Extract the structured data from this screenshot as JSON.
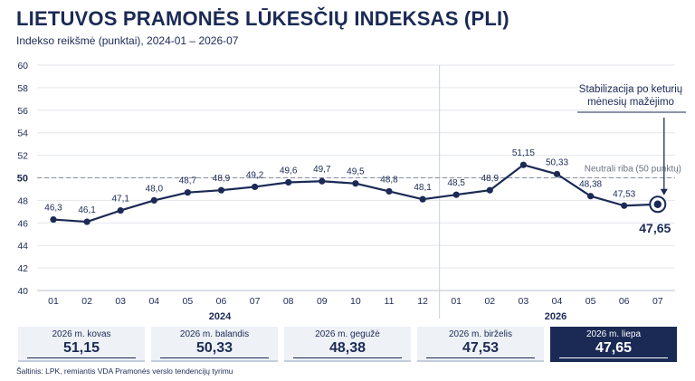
{
  "header": {
    "title": "LIETUVOS PRAMONĖS LŪKESČIŲ INDEKSAS (PLI)",
    "subtitle": "Indekso reikšmė (punktai), 2024-01 – 2026-07"
  },
  "chart_data": {
    "type": "line",
    "ylim": [
      40,
      60
    ],
    "yticks": [
      40,
      42,
      44,
      46,
      48,
      50,
      52,
      54,
      56,
      58,
      60
    ],
    "x_labels": [
      "01",
      "02",
      "03",
      "04",
      "05",
      "06",
      "07",
      "08",
      "09",
      "10",
      "11",
      "12",
      "01",
      "02",
      "03",
      "04",
      "05",
      "06",
      "07"
    ],
    "year_labels": [
      {
        "label": "2024",
        "from": 0,
        "to": 11
      },
      {
        "label": "2026",
        "from": 12,
        "to": 18
      }
    ],
    "series": [
      {
        "values": [
          46.3,
          46.1,
          47.1,
          48.0,
          48.7,
          48.9,
          49.2,
          49.6,
          49.7,
          49.5,
          48.8,
          48.1,
          48.5,
          48.9,
          51.15,
          50.33,
          48.38,
          47.53,
          47.65
        ],
        "value_labels": [
          "46,3",
          "46,1",
          "47,1",
          "48,0",
          "48,7",
          "48,9",
          "49,2",
          "49,6",
          "49,7",
          "49,5",
          "48,8",
          "48,1",
          "48,5",
          "48,9",
          "51,15",
          "50,33",
          "48,38",
          "47,53",
          "47,65"
        ],
        "color": "#1b2a55"
      }
    ],
    "reference_line": {
      "value": 50,
      "label": "Neutrali riba (50 punktų)"
    },
    "annotation": {
      "text_lines": [
        "Stabilizacija po keturių",
        "mėnesių mažėjimo"
      ],
      "target_index": 18
    }
  },
  "cards": [
    {
      "label": "2026 m. kovas",
      "value": "51,15",
      "highlight": false
    },
    {
      "label": "2026 m. balandis",
      "value": "50,33",
      "highlight": false
    },
    {
      "label": "2026 m. gegužė",
      "value": "48,38",
      "highlight": false
    },
    {
      "label": "2026 m. birželis",
      "value": "47,53",
      "highlight": false
    },
    {
      "label": "2026 m. liepa",
      "value": "47,65",
      "highlight": true
    }
  ],
  "source": "Šaltinis: LPK, remiantis VDA Pramonės verslo tendencijų tyrimu",
  "colors": {
    "primary": "#1b2a55",
    "grid": "#e3e6ec",
    "reference": "#8a8f9a"
  }
}
